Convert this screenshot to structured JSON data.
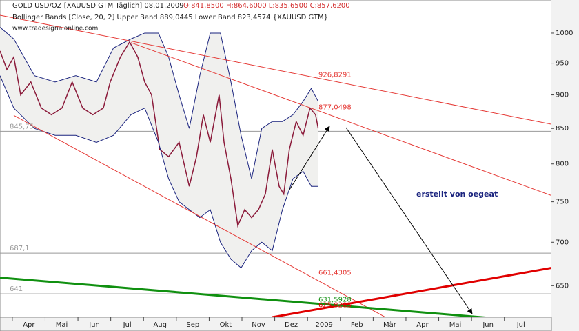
{
  "chart_data": {
    "type": "line",
    "log_scale": true,
    "grid": false,
    "header": {
      "symbol": "GOLD USD/OZ [XAUUSD GTM  Täglich] 08.01.2009 - ",
      "ohlc": "O:841,8500 H:864,6000 L:835,6500 C:857,6200",
      "indicator": "Bollinger Bands [Close, 20, 2] Upper Band 889,0445 Lower Band 823,4574 {XAUUSD GTM}",
      "source": "www.tradesignalonline.com"
    },
    "annotation": "erstellt von oegeat",
    "xlim": [
      -0.88,
      15.93
    ],
    "xticks": [
      {
        "value": 0,
        "label": "Apr"
      },
      {
        "value": 1,
        "label": "Mai"
      },
      {
        "value": 2,
        "label": "Jun"
      },
      {
        "value": 3,
        "label": "Jul"
      },
      {
        "value": 4,
        "label": "Aug"
      },
      {
        "value": 5,
        "label": "Sep"
      },
      {
        "value": 6,
        "label": "Okt"
      },
      {
        "value": 7,
        "label": "Nov"
      },
      {
        "value": 8,
        "label": "Dez"
      },
      {
        "value": 9,
        "label": "2009"
      },
      {
        "value": 10,
        "label": "Feb"
      },
      {
        "value": 11,
        "label": "Mär"
      },
      {
        "value": 12,
        "label": "Apr"
      },
      {
        "value": 13,
        "label": "Mai"
      },
      {
        "value": 14,
        "label": "Jun"
      },
      {
        "value": 15,
        "label": "Jul"
      }
    ],
    "ylim": [
      616,
      1031
    ],
    "yticks": [
      650,
      700,
      750,
      800,
      850,
      900,
      950,
      1000
    ],
    "series": [
      {
        "name": "Close",
        "color": "#8b1a3a",
        "x": [
          -0.88,
          -0.67,
          -0.46,
          -0.25,
          0.06,
          0.38,
          0.69,
          1.01,
          1.32,
          1.64,
          1.95,
          2.27,
          2.48,
          2.79,
          3.07,
          3.32,
          3.53,
          3.74,
          3.99,
          4.26,
          4.58,
          4.89,
          5.11,
          5.32,
          5.53,
          5.8,
          5.95,
          6.16,
          6.37,
          6.58,
          6.79,
          7.0,
          7.21,
          7.42,
          7.63,
          7.77,
          7.94,
          8.15,
          8.36,
          8.57,
          8.74,
          8.82
        ],
        "values": [
          970,
          940,
          960,
          900,
          920,
          880,
          870,
          880,
          920,
          880,
          870,
          880,
          920,
          960,
          985,
          960,
          920,
          900,
          820,
          810,
          830,
          770,
          810,
          870,
          830,
          900,
          830,
          780,
          720,
          740,
          730,
          740,
          760,
          820,
          770,
          760,
          820,
          860,
          840,
          880,
          870,
          850
        ]
      },
      {
        "name": "Upper Band",
        "color": "#1a237e",
        "x": [
          -0.88,
          -0.46,
          0.17,
          0.8,
          1.43,
          2.06,
          2.58,
          3.11,
          3.53,
          3.95,
          4.26,
          4.58,
          4.89,
          5.21,
          5.53,
          5.84,
          6.16,
          6.47,
          6.79,
          7.1,
          7.42,
          7.73,
          8.05,
          8.36,
          8.61,
          8.82
        ],
        "values": [
          1010,
          990,
          930,
          920,
          930,
          920,
          975,
          990,
          1000,
          1000,
          960,
          900,
          850,
          930,
          1000,
          1000,
          920,
          840,
          780,
          850,
          860,
          860,
          870,
          890,
          910,
          890
        ]
      },
      {
        "name": "Lower Band",
        "color": "#1a237e",
        "x": [
          -0.88,
          -0.46,
          0.17,
          0.8,
          1.43,
          2.06,
          2.58,
          3.11,
          3.53,
          3.95,
          4.26,
          4.58,
          4.89,
          5.21,
          5.53,
          5.84,
          6.16,
          6.47,
          6.79,
          7.1,
          7.42,
          7.73,
          8.05,
          8.36,
          8.61,
          8.82
        ],
        "values": [
          930,
          880,
          850,
          840,
          840,
          830,
          840,
          870,
          880,
          830,
          780,
          750,
          740,
          730,
          740,
          700,
          680,
          670,
          690,
          700,
          690,
          740,
          780,
          790,
          770,
          770
        ]
      }
    ],
    "trendlines": [
      {
        "x": [
          -0.88,
          15.93
        ],
        "values": [
          1031,
          856
        ],
        "color": "#e53935",
        "value": 926.8291,
        "value_label": "926,8291",
        "width": 1
      },
      {
        "x": [
          3.11,
          15.93
        ],
        "values": [
          984,
          758
        ],
        "color": "#e53935",
        "value": 877.0498,
        "value_label": "877,0498",
        "width": 1
      },
      {
        "x": [
          -0.46,
          11.3
        ],
        "values": [
          869,
          608
        ],
        "color": "#e53935",
        "value": 661.4305,
        "value_label": "661,4305",
        "width": 1
      },
      {
        "x": [
          7.42,
          15.93
        ],
        "values": [
          616,
          670
        ],
        "color": "#e00000",
        "value": 625.8283,
        "value_label": "625,8283",
        "width": 3
      },
      {
        "x": [
          -0.88,
          15.93
        ],
        "values": [
          659,
          610
        ],
        "color": "#109010",
        "value": 631.5928,
        "value_label": "631,5928",
        "width": 3
      }
    ],
    "levels": [
      {
        "value": 845.75,
        "label": "845,75"
      },
      {
        "value": 687.1,
        "label": "687,1"
      },
      {
        "value": 641,
        "label": "641"
      }
    ]
  }
}
